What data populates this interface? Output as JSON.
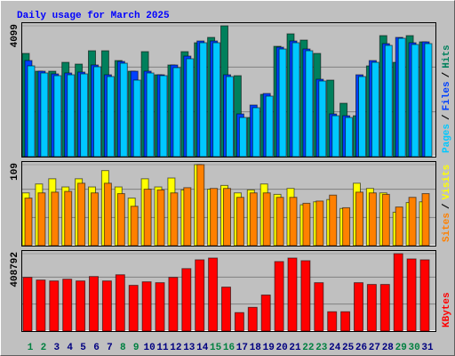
{
  "chart_data": [
    {
      "type": "bar",
      "title": "Daily usage for March 2025",
      "ylim": [
        0,
        4099
      ],
      "yticks": [
        4099
      ],
      "separator": "/",
      "series": [
        {
          "name": "Pages",
          "color": "#00c8ff",
          "values": [
            2844,
            2621,
            2537,
            2565,
            2593,
            2816,
            2509,
            2927,
            2398,
            2621,
            2537,
            2788,
            3067,
            3569,
            3569,
            2509,
            1227,
            1533,
            1896,
            3373,
            3569,
            3318,
            2370,
            1282,
            1227,
            2509,
            2955,
            3485,
            3708,
            3513,
            3541
          ]
        },
        {
          "name": "Files",
          "color": "#0040ff",
          "values": [
            3011,
            2677,
            2593,
            2621,
            2649,
            2872,
            2565,
            2983,
            2677,
            2677,
            2565,
            2872,
            3150,
            3624,
            3624,
            2565,
            1338,
            1617,
            1979,
            3429,
            3624,
            3373,
            2425,
            1338,
            1282,
            2565,
            3011,
            3541,
            3736,
            3569,
            3597
          ]
        },
        {
          "name": "Hits",
          "color": "#00805c",
          "values": [
            3234,
            2677,
            2677,
            2955,
            2900,
            3318,
            3318,
            3011,
            2677,
            3290,
            2565,
            2872,
            3290,
            3569,
            3736,
            4099,
            2537,
            1227,
            1952,
            3457,
            3848,
            3652,
            3234,
            2398,
            1673,
            1282,
            2844,
            3792,
            2955,
            3792,
            3597
          ]
        }
      ]
    },
    {
      "type": "bar",
      "ylim": [
        0,
        109
      ],
      "yticks": [
        109
      ],
      "separator": "/",
      "series": [
        {
          "name": "Sites",
          "color": "#ff8000",
          "values": [
            64,
            71,
            72,
            73,
            84,
            71,
            84,
            70,
            53,
            76,
            75,
            71,
            78,
            109,
            77,
            77,
            65,
            71,
            71,
            65,
            65,
            57,
            60,
            68,
            51,
            72,
            71,
            69,
            52,
            65,
            70
          ]
        },
        {
          "name": "Visits",
          "color": "#ffff00",
          "values": [
            71,
            83,
            90,
            79,
            90,
            79,
            101,
            79,
            64,
            90,
            79,
            91,
            75,
            109,
            76,
            81,
            71,
            75,
            83,
            69,
            77,
            55,
            59,
            62,
            50,
            84,
            77,
            71,
            45,
            58,
            59
          ]
        }
      ]
    },
    {
      "type": "bar",
      "ylim": [
        0,
        408792
      ],
      "yticks": [
        408792
      ],
      "categories": [
        "1",
        "2",
        "3",
        "4",
        "5",
        "6",
        "7",
        "8",
        "9",
        "10",
        "11",
        "12",
        "13",
        "14",
        "15",
        "16",
        "17",
        "18",
        "19",
        "20",
        "21",
        "22",
        "23",
        "24",
        "25",
        "26",
        "27",
        "28",
        "29",
        "30",
        "31"
      ],
      "category_colors": [
        "#008040",
        "#008040",
        "#000080",
        "#000080",
        "#000080",
        "#000080",
        "#000080",
        "#008040",
        "#008040",
        "#000080",
        "#000080",
        "#000080",
        "#000080",
        "#000080",
        "#008040",
        "#008040",
        "#000080",
        "#000080",
        "#000080",
        "#000080",
        "#000080",
        "#008040",
        "#008040",
        "#000080",
        "#000080",
        "#000080",
        "#000080",
        "#000080",
        "#008040",
        "#008040",
        "#000080"
      ],
      "series": [
        {
          "name": "KBytes",
          "color": "#ff0000",
          "values": [
            283345,
            269410,
            264765,
            274055,
            264765,
            287990,
            264765,
            297280,
            241540,
            260120,
            255475,
            283345,
            329795,
            376245,
            385535,
            232250,
            97545,
            125415,
            190445,
            366955,
            385535,
            371600,
            255475,
            102190,
            102190,
            255475,
            246185,
            246185,
            408792,
            380890,
            376245
          ]
        }
      ]
    }
  ]
}
